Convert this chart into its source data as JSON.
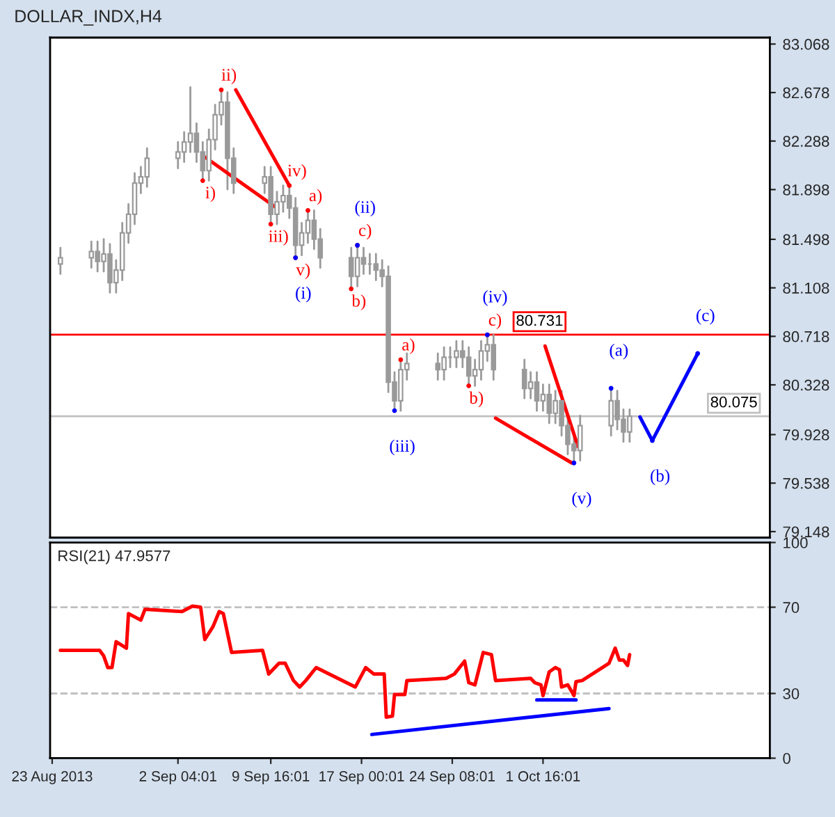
{
  "chart_data": [
    {
      "type": "candlestick",
      "title": "DOLLAR_INDX,H4",
      "x": [
        "2013-08-23T16:00",
        "2013-08-26T04:00",
        "2013-08-26T16:00",
        "2013-08-27T04:00",
        "2013-08-27T16:00",
        "2013-08-28T04:00",
        "2013-08-28T16:00",
        "2013-08-29T04:00",
        "2013-08-29T16:00",
        "2013-08-30T04:00",
        "2013-08-30T16:00",
        "2013-09-02T04:00",
        "2013-09-02T16:00",
        "2013-09-03T04:00",
        "2013-09-03T16:00",
        "2013-09-04T04:00",
        "2013-09-04T16:00",
        "2013-09-05T04:00",
        "2013-09-05T16:00",
        "2013-09-06T04:00",
        "2013-09-06T16:00",
        "2013-09-09T04:00",
        "2013-09-09T16:00",
        "2013-09-10T04:00",
        "2013-09-10T16:00",
        "2013-09-11T04:00",
        "2013-09-11T16:00",
        "2013-09-12T04:00",
        "2013-09-12T16:00",
        "2013-09-13T04:00",
        "2013-09-13T16:00",
        "2013-09-16T04:00",
        "2013-09-16T16:00",
        "2013-09-17T04:00",
        "2013-09-17T16:00",
        "2013-09-18T04:00",
        "2013-09-18T16:00",
        "2013-09-19T04:00",
        "2013-09-19T16:00",
        "2013-09-20T04:00",
        "2013-09-20T16:00",
        "2013-09-23T04:00",
        "2013-09-23T16:00",
        "2013-09-24T04:00",
        "2013-09-24T16:00",
        "2013-09-25T04:00",
        "2013-09-25T16:00",
        "2013-09-26T04:00",
        "2013-09-26T16:00",
        "2013-09-27T04:00",
        "2013-09-27T16:00",
        "2013-09-30T04:00",
        "2013-09-30T16:00",
        "2013-10-01T04:00",
        "2013-10-01T16:00",
        "2013-10-02T04:00",
        "2013-10-02T16:00",
        "2013-10-03T04:00",
        "2013-10-03T16:00",
        "2013-10-04T04:00",
        "2013-10-04T16:00",
        "2013-10-07T04:00",
        "2013-10-07T16:00",
        "2013-10-08T04:00",
        "2013-10-08T16:00"
      ],
      "ohlc": [
        [
          81.3,
          81.43,
          81.22,
          81.35
        ],
        [
          81.35,
          81.48,
          81.27,
          81.4
        ],
        [
          81.4,
          81.48,
          81.24,
          81.32
        ],
        [
          81.32,
          81.5,
          81.24,
          81.38
        ],
        [
          81.38,
          81.46,
          81.07,
          81.15
        ],
        [
          81.15,
          81.33,
          81.07,
          81.25
        ],
        [
          81.25,
          81.63,
          81.17,
          81.55
        ],
        [
          81.55,
          81.78,
          81.47,
          81.7
        ],
        [
          81.7,
          82.03,
          81.62,
          81.95
        ],
        [
          81.95,
          82.08,
          81.87,
          82.0
        ],
        [
          82.0,
          82.23,
          81.92,
          82.15
        ],
        [
          82.15,
          82.28,
          82.07,
          82.2
        ],
        [
          82.2,
          82.36,
          82.12,
          82.28
        ],
        [
          82.28,
          82.72,
          82.2,
          82.35
        ],
        [
          82.35,
          82.43,
          82.12,
          82.2
        ],
        [
          82.2,
          82.28,
          81.97,
          82.05
        ],
        [
          82.05,
          82.38,
          81.97,
          82.3
        ],
        [
          82.3,
          82.58,
          82.22,
          82.5
        ],
        [
          82.5,
          82.7,
          82.42,
          82.6
        ],
        [
          82.6,
          82.68,
          81.9,
          82.15
        ],
        [
          82.15,
          82.23,
          81.87,
          81.95
        ],
        [
          81.95,
          82.08,
          81.87,
          82.0
        ],
        [
          82.0,
          82.08,
          81.62,
          81.7
        ],
        [
          81.7,
          81.88,
          81.62,
          81.8
        ],
        [
          81.8,
          81.93,
          81.72,
          81.85
        ],
        [
          81.85,
          81.93,
          81.67,
          81.75
        ],
        [
          81.75,
          81.83,
          81.35,
          81.45
        ],
        [
          81.45,
          81.63,
          81.37,
          81.55
        ],
        [
          81.55,
          81.73,
          81.47,
          81.65
        ],
        [
          81.65,
          81.73,
          81.42,
          81.5
        ],
        [
          81.5,
          81.58,
          81.27,
          81.35
        ],
        [
          81.35,
          81.43,
          81.1,
          81.2
        ],
        [
          81.2,
          81.45,
          81.12,
          81.35
        ],
        [
          81.35,
          81.43,
          81.22,
          81.3
        ],
        [
          81.3,
          81.38,
          81.22,
          81.3
        ],
        [
          81.3,
          81.38,
          81.17,
          81.25
        ],
        [
          81.25,
          81.33,
          81.12,
          81.2
        ],
        [
          81.2,
          81.28,
          80.27,
          80.35
        ],
        [
          80.35,
          80.43,
          80.12,
          80.2
        ],
        [
          80.2,
          80.53,
          80.12,
          80.45
        ],
        [
          80.45,
          80.58,
          80.37,
          80.5
        ],
        [
          80.5,
          80.58,
          80.37,
          80.45
        ],
        [
          80.45,
          80.63,
          80.37,
          80.55
        ],
        [
          80.55,
          80.63,
          80.47,
          80.55
        ],
        [
          80.55,
          80.68,
          80.47,
          80.6
        ],
        [
          80.6,
          80.68,
          80.47,
          80.55
        ],
        [
          80.55,
          80.63,
          80.32,
          80.4
        ],
        [
          80.4,
          80.53,
          80.32,
          80.45
        ],
        [
          80.45,
          80.68,
          80.37,
          80.6
        ],
        [
          80.6,
          80.73,
          80.52,
          80.65
        ],
        [
          80.65,
          80.73,
          80.37,
          80.45
        ],
        [
          80.45,
          80.53,
          80.22,
          80.3
        ],
        [
          80.3,
          80.43,
          80.22,
          80.35
        ],
        [
          80.35,
          80.43,
          80.12,
          80.2
        ],
        [
          80.2,
          80.33,
          80.12,
          80.25
        ],
        [
          80.25,
          80.33,
          80.02,
          80.1
        ],
        [
          80.1,
          80.28,
          80.02,
          80.2
        ],
        [
          80.2,
          80.28,
          79.92,
          80.0
        ],
        [
          80.0,
          80.08,
          79.77,
          79.85
        ],
        [
          79.85,
          79.93,
          79.7,
          79.8
        ],
        [
          79.8,
          80.08,
          79.72,
          80.0
        ],
        [
          80.0,
          80.3,
          79.92,
          80.2
        ],
        [
          80.2,
          80.28,
          79.97,
          80.05
        ],
        [
          80.05,
          80.13,
          79.87,
          79.95
        ],
        [
          79.95,
          80.13,
          79.87,
          80.075
        ]
      ],
      "color": "#9a9a9a",
      "series": [
        {
          "type": "line",
          "color": "#ff0000",
          "x": [
            "2013-09-04T08:00",
            "2013-09-10T00:00"
          ],
          "values": [
            82.16,
            81.76
          ]
        },
        {
          "type": "line",
          "color": "#ff0000",
          "x": [
            "2013-09-06T20:00",
            "2013-09-11T04:00"
          ],
          "values": [
            82.7,
            81.93
          ]
        },
        {
          "type": "line",
          "color": "#ff0000",
          "x": [
            "2013-09-27T20:00",
            "2013-10-04T00:00"
          ],
          "values": [
            80.06,
            79.7
          ]
        },
        {
          "type": "line",
          "color": "#ff0000",
          "x": [
            "2013-10-01T20:00",
            "2013-10-04T12:00"
          ],
          "values": [
            80.64,
            79.83
          ]
        },
        {
          "type": "line",
          "color": "#0000ff",
          "x": [
            "2013-10-09T12:00",
            "2013-10-10T12:00",
            "2013-10-14T04:00"
          ],
          "values": [
            80.07,
            79.88,
            80.58
          ]
        },
        {
          "type": "scatter",
          "marker": "circle",
          "color": "#ff0000",
          "x": [
            "2013-09-04T04:00",
            "2013-09-05T16:00",
            "2013-09-09T16:00",
            "2013-09-11T04:00",
            "2013-09-11T16:00",
            "2013-09-12T16:00",
            "2013-09-16T04:00",
            "2013-09-16T16:00",
            "2013-09-20T04:00",
            "2013-09-25T16:00",
            "2013-09-27T04:00"
          ],
          "values": [
            81.97,
            82.7,
            81.62,
            81.93,
            81.35,
            81.73,
            81.1,
            81.45,
            80.53,
            80.32,
            80.73
          ],
          "value_labels": [
            "i)",
            "ii)",
            "iii)",
            "iv)",
            "v)",
            "a)",
            "b)",
            "c)",
            "a)",
            "b)",
            "c)"
          ]
        },
        {
          "type": "scatter",
          "marker": "circle",
          "color": "#0000ff",
          "x": [
            "2013-09-11T16:00",
            "2013-09-16T16:00",
            "2013-09-19T16:00",
            "2013-09-27T04:00",
            "2013-10-04T04:00",
            "2013-10-07T04:00",
            "2013-10-10T12:00",
            "2013-10-14T04:00"
          ],
          "values": [
            81.35,
            81.45,
            80.12,
            80.73,
            79.7,
            80.3,
            79.88,
            80.58
          ],
          "value_labels": [
            "(i)",
            "(ii)",
            "(iii)",
            "(iv)",
            "(v)",
            "(a)",
            "(b)",
            "(c)"
          ]
        }
      ],
      "xlim": [
        "2013-08-22T20:00",
        "2013-10-20T00:00"
      ],
      "ylim": [
        79.1,
        83.12
      ],
      "yticks": [
        79.148,
        79.538,
        79.928,
        80.328,
        80.718,
        81.108,
        81.498,
        81.898,
        82.288,
        82.678,
        83.068
      ],
      "ref_lines": [
        {
          "axis": "y",
          "value": 80.731,
          "label": "80.731",
          "color": "#ff0000"
        },
        {
          "axis": "y",
          "value": 80.075,
          "label": "80.075",
          "color": "#c0c0c0"
        }
      ],
      "tick_labels": "y",
      "grid": false,
      "legend": false
    },
    {
      "type": "line",
      "title": "RSI(21) 47.9577",
      "series": [
        {
          "color": "#ff0000",
          "x": [
            "2013-08-23T16:00",
            "2013-08-26T20:00",
            "2013-08-27T04:00",
            "2013-08-27T12:00",
            "2013-08-27T20:00",
            "2013-08-28T04:00",
            "2013-08-29T00:00",
            "2013-08-29T04:00",
            "2013-08-30T04:00",
            "2013-08-30T12:00",
            "2013-09-02T12:00",
            "2013-09-03T08:00",
            "2013-09-04T00:00",
            "2013-09-04T08:00",
            "2013-09-05T00:00",
            "2013-09-05T12:00",
            "2013-09-05T20:00",
            "2013-09-06T12:00",
            "2013-09-09T00:00",
            "2013-09-09T12:00",
            "2013-09-10T08:00",
            "2013-09-10T20:00",
            "2013-09-11T12:00",
            "2013-09-12T00:00",
            "2013-09-12T12:00",
            "2013-09-13T08:00",
            "2013-09-16T12:00",
            "2013-09-17T08:00",
            "2013-09-18T00:00",
            "2013-09-18T20:00",
            "2013-09-19T00:00",
            "2013-09-19T12:00",
            "2013-09-19T16:00",
            "2013-09-20T12:00",
            "2013-09-20T16:00",
            "2013-09-23T20:00",
            "2013-09-24T12:00",
            "2013-09-25T08:00",
            "2013-09-25T16:00",
            "2013-09-26T04:00",
            "2013-09-26T20:00",
            "2013-09-27T12:00",
            "2013-09-27T20:00",
            "2013-09-30T16:00",
            "2013-10-01T00:00",
            "2013-10-01T12:00",
            "2013-10-01T16:00",
            "2013-10-02T04:00",
            "2013-10-02T16:00",
            "2013-10-03T00:00",
            "2013-10-03T04:00",
            "2013-10-03T16:00",
            "2013-10-04T04:00",
            "2013-10-04T08:00",
            "2013-10-04T20:00",
            "2013-10-07T00:00",
            "2013-10-07T12:00",
            "2013-10-07T20:00",
            "2013-10-08T04:00",
            "2013-10-08T12:00",
            "2013-10-08T16:00"
          ],
          "values": [
            50,
            50,
            47.4,
            42,
            42,
            54,
            51,
            67,
            64,
            69,
            68,
            70.5,
            70,
            55,
            61,
            68,
            67,
            49,
            50,
            39,
            44,
            44,
            36,
            33,
            36,
            42,
            33,
            42,
            39,
            39,
            19,
            19.5,
            29.5,
            29.5,
            36,
            37,
            39,
            45,
            35,
            34,
            49,
            48,
            36,
            37,
            35,
            34,
            29,
            40,
            42,
            41,
            33,
            34,
            29,
            35.5,
            36,
            44,
            51,
            45.5,
            45.5,
            43,
            48
          ]
        },
        {
          "color": "#0000ff",
          "x": [
            "2013-09-17T20:00",
            "2013-10-07T00:00"
          ],
          "values": [
            11,
            23
          ]
        },
        {
          "color": "#0000ff",
          "x": [
            "2013-10-01T04:00",
            "2013-10-04T08:00"
          ],
          "values": [
            27,
            27
          ]
        }
      ],
      "xlim": [
        "2013-08-22T20:00",
        "2013-10-20T00:00"
      ],
      "ylim": [
        0,
        100
      ],
      "yticks": [
        0,
        30,
        70,
        100
      ],
      "xticks": [
        {
          "value": "2013-08-23",
          "label": "23 Aug 2013"
        },
        {
          "value": "2013-09-02T04:01",
          "label": "2 Sep 04:01"
        },
        {
          "value": "2013-09-09T16:01",
          "label": "9 Sep 16:01"
        },
        {
          "value": "2013-09-17T00:01",
          "label": "17 Sep 00:01"
        },
        {
          "value": "2013-09-24T08:01",
          "label": "24 Sep 08:01"
        },
        {
          "value": "2013-10-01T16:01",
          "label": "1 Oct 16:01"
        }
      ],
      "ref_lines": [
        {
          "axis": "y",
          "value": 30,
          "color": "#c0c0c0",
          "line_style": "dashed"
        },
        {
          "axis": "y",
          "value": 70,
          "color": "#c0c0c0",
          "line_style": "dashed"
        }
      ],
      "grid": false,
      "legend": false
    }
  ]
}
